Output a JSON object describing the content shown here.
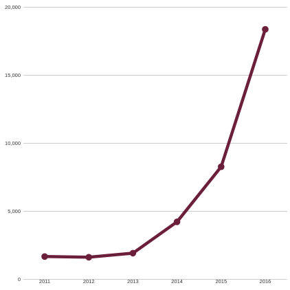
{
  "chart_data": {
    "type": "line",
    "title": "",
    "xlabel": "",
    "ylabel": "",
    "categories": [
      "2011",
      "2012",
      "2013",
      "2014",
      "2015",
      "2016"
    ],
    "series": [
      {
        "values": [
          1650,
          1600,
          1900,
          4200,
          8250,
          18350
        ],
        "color": "#6b1f3a"
      }
    ],
    "ylim": [
      0,
      20000
    ],
    "yticks": [
      0,
      5000,
      10000,
      15000,
      20000
    ],
    "ytick_labels": [
      "0",
      "5,000",
      "10,000",
      "15,000",
      "20,000"
    ],
    "grid": true,
    "legend": "none"
  }
}
